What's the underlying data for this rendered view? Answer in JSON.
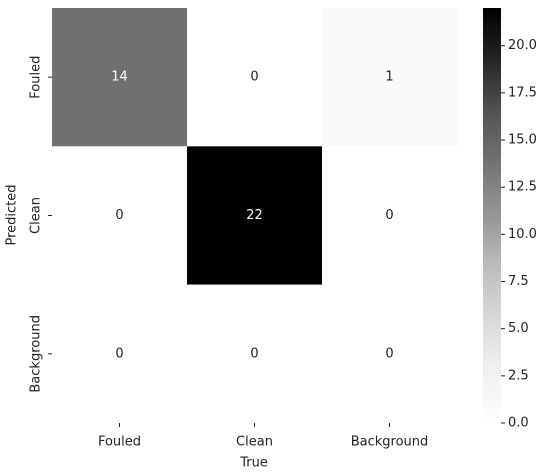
{
  "chart_data": {
    "type": "heatmap",
    "x_categories": [
      "Fouled",
      "Clean",
      "Background"
    ],
    "y_categories": [
      "Fouled",
      "Clean",
      "Background"
    ],
    "values": [
      [
        14,
        0,
        1
      ],
      [
        0,
        22,
        0
      ],
      [
        0,
        0,
        0
      ]
    ],
    "xlabel": "True",
    "ylabel": "Predicted",
    "colormap": [
      "#ffffff",
      "#f0f0f0",
      "#d9d9d9",
      "#bdbdbd",
      "#969696",
      "#737373",
      "#525252",
      "#252525",
      "#000000"
    ],
    "clim": [
      0,
      22
    ],
    "cticks": [
      {
        "value": 0,
        "label": "0.0"
      },
      2.5,
      {
        "value": 5,
        "label": "5.0"
      },
      7.5,
      {
        "value": 10,
        "label": "10.0"
      },
      12.5,
      {
        "value": 15,
        "label": "15.0"
      },
      17.5,
      {
        "value": 20,
        "label": "20.0"
      }
    ]
  }
}
